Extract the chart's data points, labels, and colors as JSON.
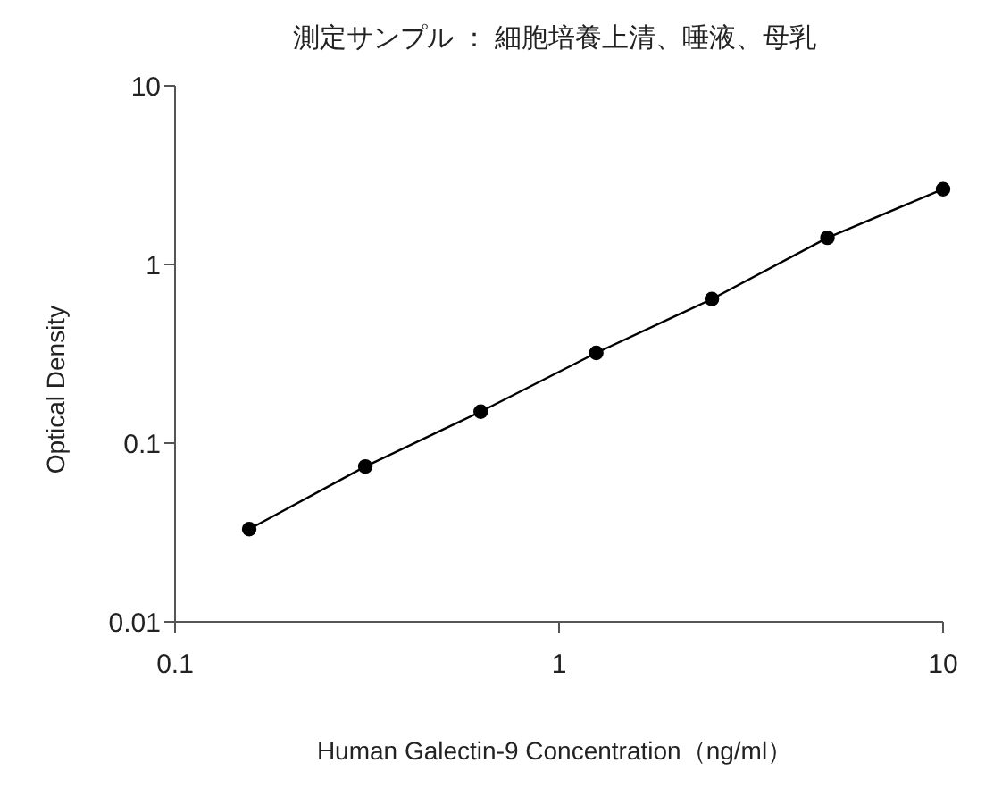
{
  "chart_data": {
    "type": "line",
    "title": "測定サンプル ： 細胞培養上清、唾液、母乳",
    "xlabel": "Human Galectin-9 Concentration（ng/ml）",
    "ylabel": "Optical Density",
    "x": [
      0.156,
      0.313,
      0.625,
      1.25,
      2.5,
      5,
      10
    ],
    "series": [
      {
        "color": "#000000",
        "values": [
          0.033,
          0.074,
          0.15,
          0.32,
          0.64,
          1.41,
          2.64
        ]
      }
    ],
    "log": "xy",
    "xlim": [
      0.1,
      10
    ],
    "ylim": [
      0.01,
      10
    ],
    "xticks": [
      0.1,
      1,
      10
    ],
    "yticks": [
      0.01,
      0.1,
      1,
      10
    ],
    "marker": "circle",
    "line_style": "solid"
  }
}
